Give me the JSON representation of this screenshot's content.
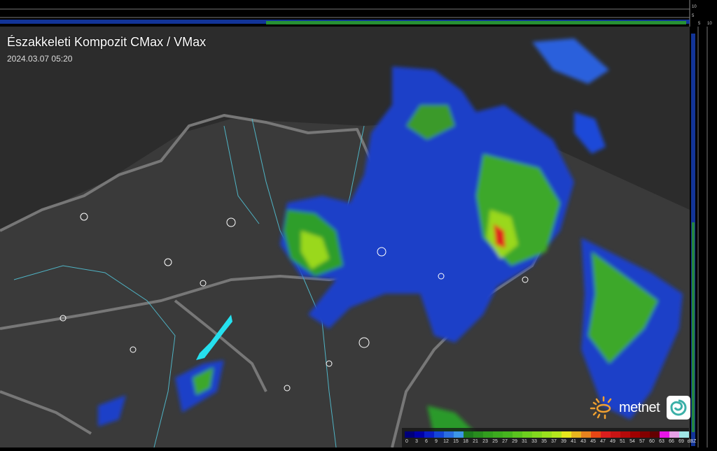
{
  "title": "Északkeleti Kompozit CMax / VMax",
  "timestamp": "2024.03.07 05:20",
  "logo": {
    "text": "metnet",
    "icon": "sun-icon",
    "badge_icon": "swirl-icon"
  },
  "side_axis": {
    "top_ticks": [
      "10",
      "5"
    ],
    "right_ticks": [
      "5",
      "10"
    ]
  },
  "legend": {
    "unit": "dBZ",
    "labels": [
      "0",
      "3",
      "6",
      "9",
      "12",
      "15",
      "18",
      "21",
      "23",
      "25",
      "27",
      "29",
      "31",
      "33",
      "35",
      "37",
      "39",
      "41",
      "43",
      "45",
      "47",
      "49",
      "51",
      "54",
      "57",
      "60",
      "63",
      "66",
      "69"
    ],
    "colors": [
      "#00007a",
      "#0000a8",
      "#0a1ec8",
      "#1446d8",
      "#2a6ee0",
      "#3c96e6",
      "#1e7a1e",
      "#288c1e",
      "#329e1e",
      "#3caa1e",
      "#46b41e",
      "#5ac31e",
      "#6ecf1e",
      "#82d81e",
      "#9ae01e",
      "#b4e61e",
      "#e6e61e",
      "#e6b41e",
      "#e6821e",
      "#e64614",
      "#dc1e1e",
      "#c81414",
      "#b40a0a",
      "#a00000",
      "#820000",
      "#640000",
      "#e614e6",
      "#e6a0e6",
      "#a0e6e6"
    ]
  }
}
